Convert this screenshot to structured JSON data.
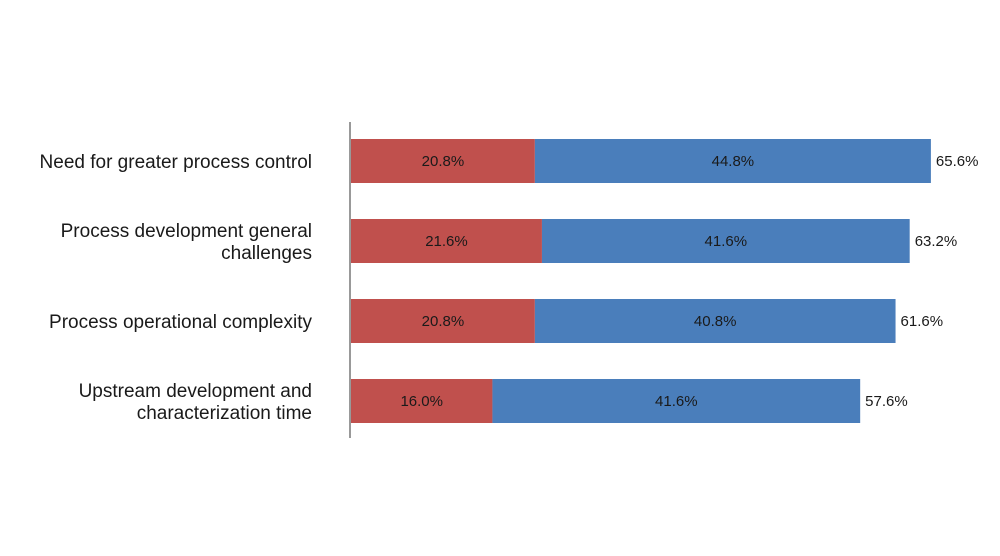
{
  "chart_data": {
    "type": "bar",
    "orientation": "horizontal",
    "stacked": true,
    "categories": [
      [
        "Need for greater process control"
      ],
      [
        "Process development general",
        "challenges"
      ],
      [
        "Process operational complexity"
      ],
      [
        "Upstream development and",
        "characterization time"
      ]
    ],
    "series": [
      {
        "values": [
          20.8,
          21.6,
          20.8,
          16.0
        ],
        "labels": [
          "20.8%",
          "21.6%",
          "20.8%",
          "16.0%"
        ],
        "color": "#c0504d"
      },
      {
        "values": [
          44.8,
          41.6,
          40.8,
          41.6
        ],
        "labels": [
          "44.8%",
          "41.6%",
          "40.8%",
          "41.6%"
        ],
        "color": "#4a7ebb"
      }
    ],
    "totals": [
      65.6,
      63.2,
      61.6,
      57.6
    ],
    "total_labels": [
      "65.6%",
      "63.2%",
      "61.6%",
      "57.6%"
    ],
    "xlim": [
      0,
      100
    ],
    "grid": false,
    "legend": "none",
    "axis_color": "#999999"
  }
}
